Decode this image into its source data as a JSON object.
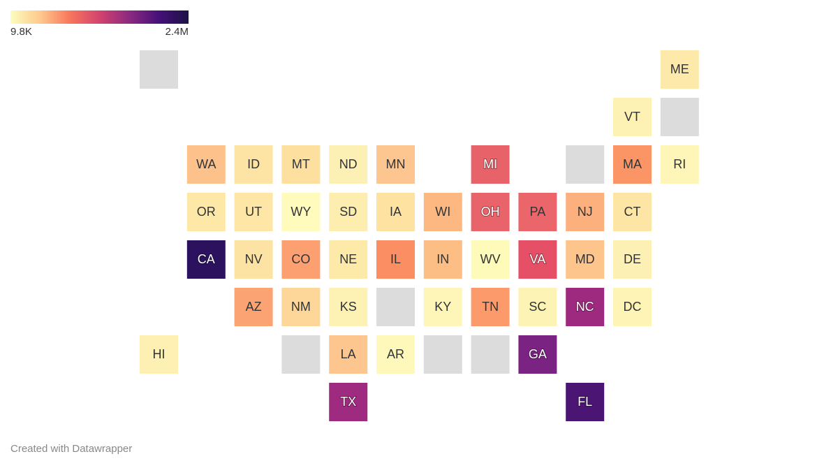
{
  "legend": {
    "min_label": "9.8K",
    "max_label": "2.4M",
    "colors": [
      "#fcfdbf",
      "#fec98d",
      "#f8765c",
      "#d3436e",
      "#8c2981",
      "#451077",
      "#1d1147"
    ]
  },
  "missing_color": "#dcdcdc",
  "tiles": [
    {
      "label": null,
      "color": "#dcdcdc"
    },
    {
      "label": "ME",
      "color": "#fde9a9"
    },
    {
      "label": "VT",
      "color": "#fdf1b3"
    },
    {
      "label": null,
      "color": "#dcdcdc"
    },
    {
      "label": "WA",
      "color": "#fdc28c"
    },
    {
      "label": "ID",
      "color": "#fde4a5"
    },
    {
      "label": "MT",
      "color": "#fde0a0"
    },
    {
      "label": "ND",
      "color": "#fdf0b4"
    },
    {
      "label": "MN",
      "color": "#fdc590"
    },
    {
      "label": "MI",
      "color": "#e8626a"
    },
    {
      "label": null,
      "color": "#dcdcdc"
    },
    {
      "label": "MA",
      "color": "#fb9566"
    },
    {
      "label": "RI",
      "color": "#fdf6b8"
    },
    {
      "label": "OR",
      "color": "#fde8a8"
    },
    {
      "label": "UT",
      "color": "#fde6a6"
    },
    {
      "label": "WY",
      "color": "#fefbbc"
    },
    {
      "label": "SD",
      "color": "#fdeeb0"
    },
    {
      "label": "IA",
      "color": "#fde2a2"
    },
    {
      "label": "WI",
      "color": "#fdb882"
    },
    {
      "label": "OH",
      "color": "#e9636a"
    },
    {
      "label": "PA",
      "color": "#ea666a"
    },
    {
      "label": "NJ",
      "color": "#fcb07d"
    },
    {
      "label": "CT",
      "color": "#fde5a6"
    },
    {
      "label": "CA",
      "color": "#2c115f"
    },
    {
      "label": "NV",
      "color": "#fde3a3"
    },
    {
      "label": "CO",
      "color": "#fca072"
    },
    {
      "label": "NE",
      "color": "#fdeaa9"
    },
    {
      "label": "IL",
      "color": "#fb8e63"
    },
    {
      "label": "IN",
      "color": "#fdbe86"
    },
    {
      "label": "WV",
      "color": "#fefab9"
    },
    {
      "label": "VA",
      "color": "#e55066"
    },
    {
      "label": "MD",
      "color": "#fdc48b"
    },
    {
      "label": "DE",
      "color": "#fdf0b4"
    },
    {
      "label": "AZ",
      "color": "#fca374"
    },
    {
      "label": "NM",
      "color": "#fdd69a"
    },
    {
      "label": "KS",
      "color": "#fdf1b4"
    },
    {
      "label": null,
      "color": "#dcdcdc"
    },
    {
      "label": "KY",
      "color": "#fef6b8"
    },
    {
      "label": "TN",
      "color": "#fc9a6b"
    },
    {
      "label": "SC",
      "color": "#fdf3b5"
    },
    {
      "label": "NC",
      "color": "#9e2a80"
    },
    {
      "label": "DC",
      "color": "#fdf4b6"
    },
    {
      "label": "HI",
      "color": "#fdf0b2"
    },
    {
      "label": null,
      "color": "#dcdcdc"
    },
    {
      "label": "LA",
      "color": "#fdc68e"
    },
    {
      "label": "AR",
      "color": "#fef9bb"
    },
    {
      "label": null,
      "color": "#dcdcdc"
    },
    {
      "label": null,
      "color": "#dcdcdc"
    },
    {
      "label": "GA",
      "color": "#7b2382"
    },
    {
      "label": "TX",
      "color": "#9f2b80"
    },
    {
      "label": "FL",
      "color": "#4b1573"
    }
  ],
  "footer": "Created with Datawrapper"
}
